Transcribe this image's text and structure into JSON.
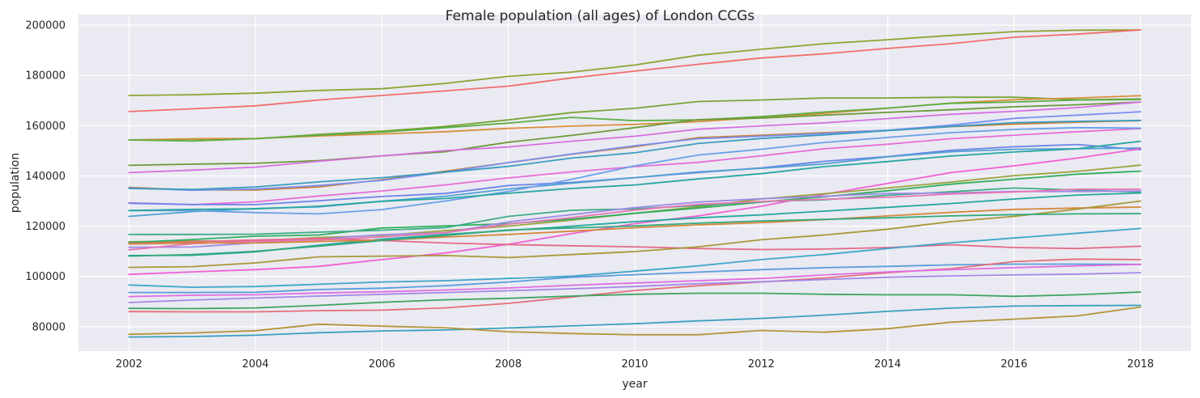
{
  "chart_data": {
    "type": "line",
    "title": "Female population (all ages) of London CCGs",
    "xlabel": "year",
    "ylabel": "population",
    "x": [
      2002,
      2003,
      2004,
      2005,
      2006,
      2007,
      2008,
      2009,
      2010,
      2011,
      2012,
      2013,
      2014,
      2015,
      2016,
      2017,
      2018
    ],
    "xlim": [
      2001.2,
      2018.8
    ],
    "ylim": [
      70300,
      204200
    ],
    "x_ticks": [
      "2002",
      "2004",
      "2006",
      "2008",
      "2010",
      "2012",
      "2014",
      "2016",
      "2018"
    ],
    "y_ticks": [
      "80000",
      "100000",
      "120000",
      "140000",
      "160000",
      "180000",
      "200000"
    ],
    "grid": true,
    "legend": "none",
    "background": "#eaeaf2",
    "series": [
      {
        "color": "#8ca431",
        "values": [
          172000,
          172300,
          172900,
          174000,
          174700,
          176800,
          179600,
          181300,
          184100,
          188000,
          190400,
          192600,
          194200,
          195900,
          197400,
          198000,
          198100
        ]
      },
      {
        "color": "#f06f6b",
        "values": [
          165600,
          166700,
          167900,
          170200,
          172000,
          173800,
          175700,
          179000,
          181700,
          184400,
          186900,
          188600,
          190700,
          192600,
          195200,
          196400,
          198100
        ]
      },
      {
        "color": "#7aa336",
        "values": [
          154300,
          154600,
          154800,
          156500,
          157800,
          159700,
          162300,
          165200,
          166900,
          169600,
          170200,
          171000,
          171000,
          171300,
          171300,
          170300,
          170600
        ]
      },
      {
        "color": "#da8e3c",
        "values": [
          154300,
          154800,
          154900,
          155900,
          156700,
          157600,
          158900,
          159800,
          160500,
          161600,
          163200,
          164900,
          166900,
          169000,
          170300,
          171000,
          171900
        ]
      },
      {
        "color": "#5bae43",
        "values": [
          154300,
          153900,
          154800,
          156200,
          157400,
          159200,
          161000,
          163300,
          162000,
          162300,
          163600,
          165400,
          167000,
          168900,
          169400,
          170200,
          170400
        ]
      },
      {
        "color": "#6b9a38",
        "values": [
          144200,
          144700,
          145000,
          146100,
          148000,
          149600,
          153400,
          156100,
          159200,
          162400,
          163000,
          164200,
          165300,
          166300,
          167500,
          168300,
          169400
        ]
      },
      {
        "color": "#c98038",
        "values": [
          135400,
          134400,
          134400,
          135600,
          138500,
          141900,
          145300,
          148600,
          151600,
          155200,
          156200,
          157200,
          158100,
          159600,
          160600,
          161400,
          162000
        ]
      },
      {
        "color": "#7b8ff0",
        "values": [
          135200,
          134300,
          134800,
          136200,
          138200,
          141500,
          145300,
          148700,
          152000,
          154800,
          155800,
          156900,
          158200,
          160200,
          162900,
          164200,
          165500
        ]
      },
      {
        "color": "#3a9dbf",
        "values": [
          135000,
          134600,
          135600,
          137600,
          139300,
          141500,
          143800,
          147100,
          149200,
          152900,
          154900,
          156300,
          158000,
          159700,
          161200,
          161700,
          162100
        ]
      },
      {
        "color": "#d76fe0",
        "values": [
          141300,
          142300,
          143500,
          145800,
          147900,
          150100,
          151500,
          153800,
          155800,
          158600,
          159900,
          161100,
          162800,
          164500,
          165700,
          167200,
          169400
        ]
      },
      {
        "color": "#e66ed6",
        "values": [
          129300,
          128600,
          129700,
          132000,
          134000,
          136400,
          139200,
          141600,
          143700,
          145400,
          148000,
          150800,
          152600,
          154800,
          156200,
          157600,
          158800
        ]
      },
      {
        "color": "#6d85e8",
        "values": [
          129100,
          128600,
          128600,
          130100,
          131800,
          133000,
          136200,
          137400,
          139300,
          141300,
          143200,
          145800,
          147700,
          150200,
          151600,
          152500,
          150400
        ]
      },
      {
        "color": "#4fa0d4",
        "values": [
          123900,
          125800,
          127000,
          127700,
          129900,
          131900,
          134800,
          137100,
          139300,
          141600,
          143000,
          144800,
          147600,
          149600,
          150600,
          150800,
          151100
        ]
      },
      {
        "color": "#6a9fe8",
        "values": [
          126200,
          126200,
          125400,
          124900,
          126600,
          130000,
          133800,
          138600,
          144000,
          148300,
          150600,
          153300,
          155300,
          157200,
          158500,
          159200,
          159000
        ]
      },
      {
        "color": "#27a6a1",
        "values": [
          126200,
          126700,
          126900,
          127900,
          129900,
          131000,
          133100,
          135000,
          136400,
          138800,
          140900,
          143700,
          145700,
          147900,
          149500,
          150800,
          153800
        ]
      },
      {
        "color": "#f05fd3",
        "values": [
          100800,
          101800,
          102700,
          104000,
          106700,
          109300,
          112800,
          117000,
          121000,
          124100,
          127900,
          132700,
          137000,
          141300,
          144000,
          147100,
          150800
        ]
      },
      {
        "color": "#9aa33a",
        "values": [
          113800,
          114100,
          114100,
          115500,
          116300,
          118200,
          120000,
          122400,
          125100,
          127700,
          130800,
          132900,
          135200,
          137500,
          140100,
          141800,
          144300
        ]
      },
      {
        "color": "#2fae5e",
        "values": [
          113500,
          114700,
          116000,
          116500,
          119300,
          120100,
          121000,
          122800,
          125100,
          127200,
          129600,
          131700,
          134100,
          136700,
          138700,
          140700,
          141900
        ]
      },
      {
        "color": "#3cac84",
        "values": [
          116700,
          116700,
          116800,
          117600,
          118400,
          119400,
          123900,
          126300,
          126900,
          128200,
          129800,
          130500,
          132300,
          133700,
          135200,
          134400,
          133600
        ]
      },
      {
        "color": "#9f8ae6",
        "values": [
          111600,
          111700,
          113400,
          114900,
          116600,
          117400,
          121700,
          124600,
          127400,
          129600,
          130900,
          131900,
          133000,
          133200,
          133800,
          133800,
          134000
        ]
      },
      {
        "color": "#e676b3",
        "values": [
          110600,
          113000,
          114000,
          114500,
          115700,
          117400,
          120800,
          123400,
          126400,
          128700,
          129800,
          130700,
          131500,
          132800,
          133600,
          134700,
          134700
        ]
      },
      {
        "color": "#22a79b",
        "values": [
          108300,
          108400,
          109800,
          112400,
          114800,
          116700,
          118300,
          120000,
          121800,
          123300,
          124500,
          126000,
          127500,
          129000,
          130800,
          132400,
          133200
        ]
      },
      {
        "color": "#e46987",
        "values": [
          113100,
          113800,
          114500,
          115100,
          114300,
          113300,
          112700,
          112200,
          111800,
          111100,
          110700,
          110900,
          111500,
          112600,
          111500,
          111100,
          112000
        ]
      },
      {
        "color": "#d4883a",
        "values": [
          112900,
          113300,
          113300,
          113900,
          114400,
          115700,
          116700,
          118000,
          119400,
          120500,
          121400,
          122600,
          124100,
          125500,
          126700,
          127200,
          127600
        ]
      },
      {
        "color": "#a89838",
        "values": [
          103600,
          103900,
          105400,
          107800,
          108100,
          108300,
          107500,
          108700,
          109900,
          111800,
          114600,
          116500,
          118800,
          121800,
          123900,
          126800,
          130000
        ]
      },
      {
        "color": "#33a87b",
        "values": [
          108100,
          108700,
          110000,
          112000,
          114300,
          116300,
          118500,
          119300,
          120100,
          121200,
          122100,
          122700,
          123300,
          124100,
          124600,
          124900,
          125000
        ]
      },
      {
        "color": "#3ea6c8",
        "values": [
          96600,
          95700,
          96000,
          96900,
          97800,
          98300,
          99200,
          100100,
          102100,
          104200,
          106700,
          108700,
          111100,
          113400,
          115300,
          117200,
          119100
        ]
      },
      {
        "color": "#5b9cdd",
        "values": [
          93600,
          93600,
          93700,
          94800,
          95300,
          96300,
          97800,
          99700,
          100700,
          101700,
          102700,
          103500,
          104000,
          104600,
          104900,
          104900,
          104800
        ]
      },
      {
        "color": "#e46f78",
        "values": [
          86000,
          85900,
          85900,
          86400,
          86600,
          87500,
          89300,
          91800,
          94400,
          96300,
          97800,
          99400,
          101500,
          103100,
          105900,
          106900,
          106700
        ]
      },
      {
        "color": "#df6ee0",
        "values": [
          92000,
          92500,
          92700,
          93400,
          93900,
          94600,
          95400,
          96500,
          97400,
          98300,
          99200,
          100600,
          101800,
          102700,
          103500,
          104200,
          104800
        ]
      },
      {
        "color": "#a587e8",
        "values": [
          89600,
          90600,
          91400,
          92200,
          92900,
          93600,
          94300,
          95100,
          96000,
          97100,
          97900,
          98800,
          99700,
          100200,
          100600,
          100900,
          101500
        ]
      },
      {
        "color": "#3fa460",
        "values": [
          87300,
          87200,
          87500,
          88500,
          89700,
          90700,
          91300,
          92200,
          92900,
          93300,
          93300,
          92900,
          92700,
          92700,
          92100,
          92700,
          93800
        ]
      },
      {
        "color": "#3aa0bf",
        "values": [
          75900,
          76100,
          76600,
          77600,
          78300,
          78700,
          79500,
          80300,
          81200,
          82300,
          83300,
          84600,
          86100,
          87400,
          88200,
          88400,
          88500
        ]
      },
      {
        "color": "#b3943a",
        "values": [
          77000,
          77500,
          78400,
          81000,
          80200,
          79600,
          78000,
          77300,
          76800,
          76800,
          78500,
          77800,
          79200,
          81800,
          83000,
          84300,
          87800
        ]
      }
    ]
  }
}
